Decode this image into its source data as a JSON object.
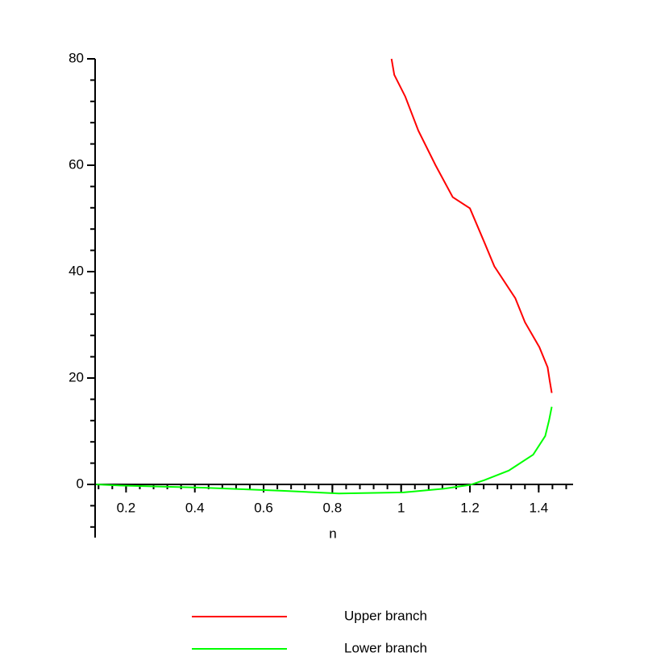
{
  "chart_data": {
    "type": "line",
    "xlabel": "n",
    "xlim": [
      0.11,
      1.5
    ],
    "xticks": [
      0.2,
      0.4,
      0.6,
      0.8,
      1,
      1.2,
      1.4
    ],
    "ylim": [
      -10,
      80
    ],
    "yticks": [
      0,
      20,
      40,
      60,
      80
    ],
    "legend": "bottom",
    "series": [
      {
        "name": "Upper branch",
        "color": "#ff0000",
        "x": [
          0.972,
          0.98,
          1.012,
          1.05,
          1.1,
          1.15,
          1.2,
          1.242,
          1.271,
          1.332,
          1.36,
          1.402,
          1.426,
          1.432,
          1.438
        ],
        "values": [
          80,
          77,
          72.9,
          66.5,
          60,
          54,
          51.9,
          45.5,
          41,
          35,
          30.5,
          25.8,
          22,
          19.5,
          17.2
        ]
      },
      {
        "name": "Lower branch",
        "color": "#00ff00",
        "x": [
          1.438,
          1.43,
          1.419,
          1.384,
          1.313,
          1.242,
          1.2,
          1.125,
          1.007,
          0.819,
          0.654,
          0.419,
          0.184,
          0.113
        ],
        "values": [
          14.6,
          12,
          9.1,
          5.6,
          2.6,
          0.8,
          -0.1,
          -0.8,
          -1.5,
          -1.7,
          -1.2,
          -0.6,
          -0.2,
          0
        ]
      }
    ]
  }
}
